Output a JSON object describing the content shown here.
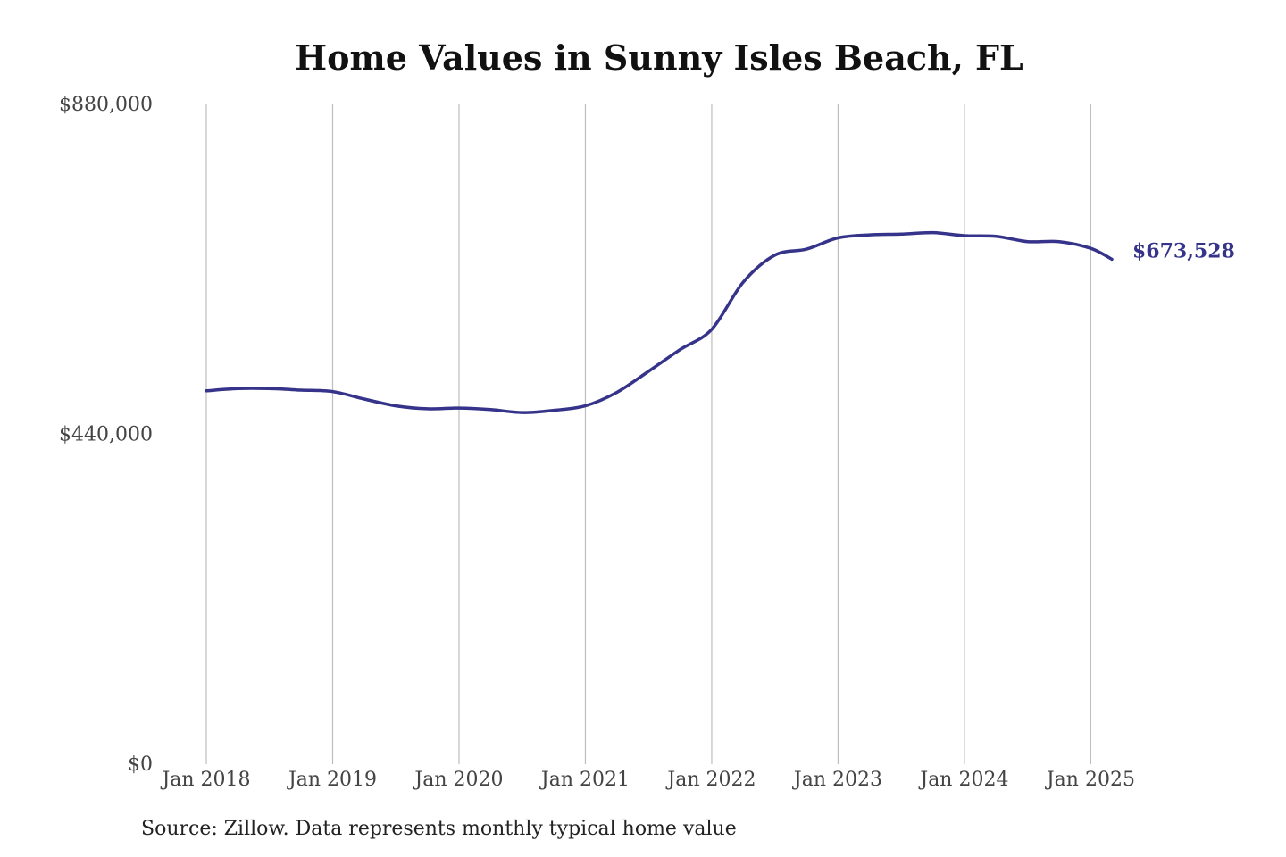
{
  "chart_data": {
    "type": "line",
    "title": "Home Values in Sunny Isles Beach, FL",
    "xlabel": "",
    "ylabel": "",
    "ylim": [
      0,
      880000
    ],
    "yticks": [
      0,
      440000,
      880000
    ],
    "ytick_labels": [
      "$0",
      "$440,000",
      "$880,000"
    ],
    "xticks": [
      "Jan 2018",
      "Jan 2019",
      "Jan 2020",
      "Jan 2021",
      "Jan 2022",
      "Jan 2023",
      "Jan 2024",
      "Jan 2025"
    ],
    "xlim": [
      "2018-01",
      "2025-03"
    ],
    "grid": "vertical",
    "line_color": "#35338a",
    "end_label": "$673,528",
    "x": [
      "2018-01",
      "2018-04",
      "2018-07",
      "2018-10",
      "2019-01",
      "2019-04",
      "2019-07",
      "2019-10",
      "2020-01",
      "2020-04",
      "2020-07",
      "2020-10",
      "2021-01",
      "2021-04",
      "2021-07",
      "2021-10",
      "2022-01",
      "2022-04",
      "2022-07",
      "2022-10",
      "2023-01",
      "2023-04",
      "2023-07",
      "2023-10",
      "2024-01",
      "2024-04",
      "2024-07",
      "2024-10",
      "2025-01",
      "2025-03"
    ],
    "values": [
      498000,
      501000,
      501000,
      499000,
      497000,
      487000,
      478000,
      474000,
      475000,
      473000,
      469000,
      472000,
      478000,
      496000,
      524000,
      553000,
      580000,
      643000,
      679000,
      687000,
      702000,
      706000,
      707000,
      709000,
      705000,
      704000,
      697000,
      697000,
      688000,
      673528
    ]
  },
  "source_note": "Source: Zillow. Data represents monthly typical home value"
}
